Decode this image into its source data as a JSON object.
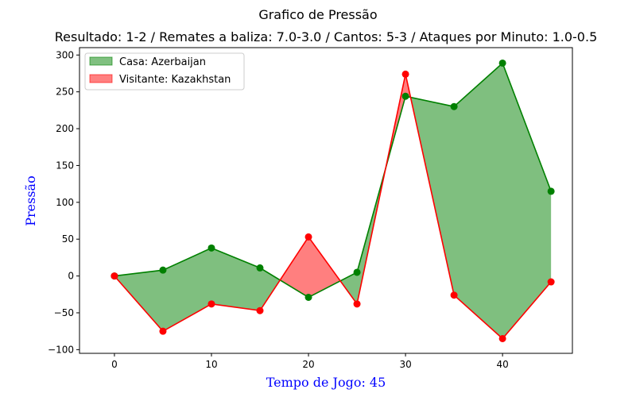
{
  "chart_data": {
    "type": "area",
    "title": "Grafico de Pressão",
    "subtitle": "Resultado: 1-2 / Remates a baliza: 7.0-3.0 / Cantos: 5-3 / Ataques por Minuto: 1.0-0.5",
    "xlabel": "Tempo de Jogo: 45",
    "ylabel": "Pressão",
    "xlim": [
      -3.6,
      47.2
    ],
    "ylim": [
      -105,
      310
    ],
    "xticks": [
      0,
      10,
      20,
      30,
      40
    ],
    "yticks": [
      -100,
      -50,
      0,
      50,
      100,
      150,
      200,
      250,
      300
    ],
    "x": [
      0,
      5,
      10,
      15,
      20,
      25,
      30,
      35,
      40,
      45
    ],
    "series": [
      {
        "name": "Casa: Azerbaijan",
        "values": [
          0,
          8,
          38,
          11,
          -29,
          5,
          244,
          230,
          289,
          115
        ],
        "color": "#008000",
        "fill": "#80c080"
      },
      {
        "name": "Visitante: Kazakhstan",
        "values": [
          0,
          -75,
          -38,
          -47,
          53,
          -38,
          274,
          -26,
          -85,
          -8
        ],
        "color": "#ff0000",
        "fill": "#ff8080"
      }
    ],
    "legend_position": "top-left",
    "grid": false
  }
}
